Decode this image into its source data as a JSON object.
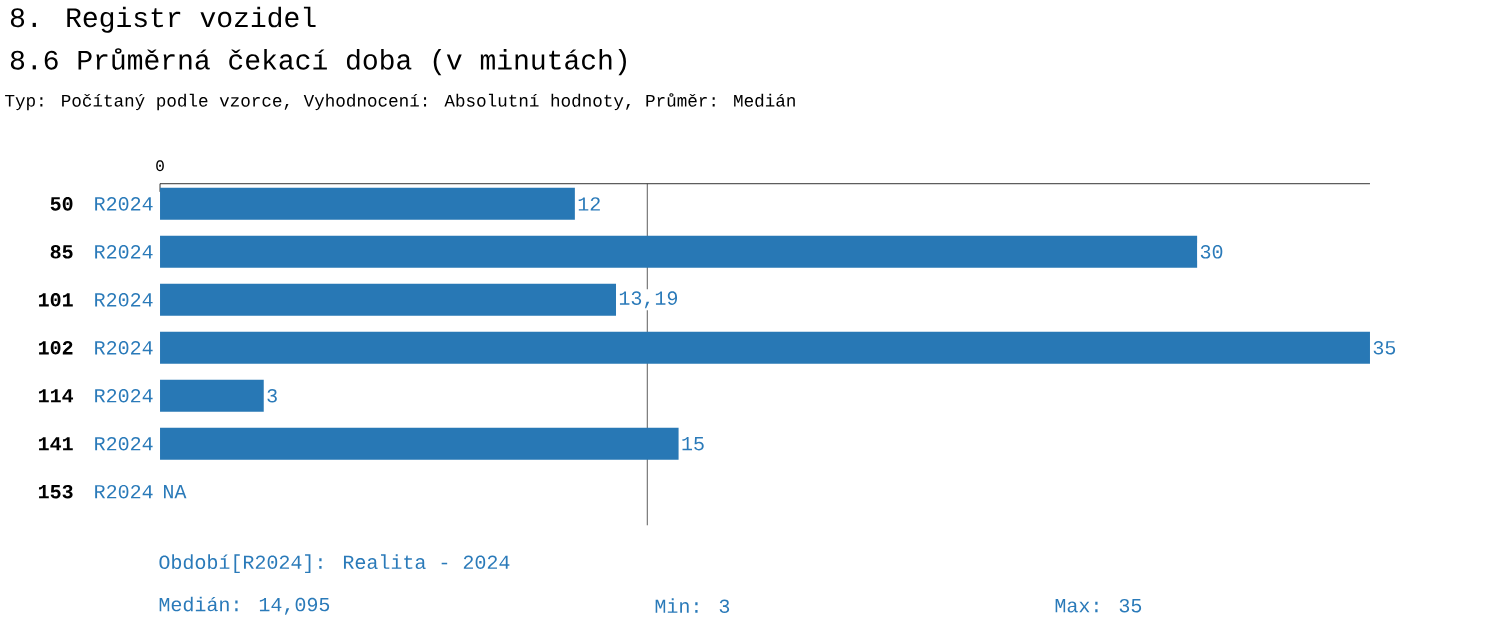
{
  "chart_data": {
    "type": "bar",
    "orientation": "horizontal",
    "title": "8. Registr vozidel",
    "subtitle": "8.6 Průměrná čekací doba (v minutách)",
    "categories": [
      "50",
      "85",
      "101",
      "102",
      "114",
      "141",
      "153"
    ],
    "series": [
      {
        "name": "R2024",
        "color": "#2878b5",
        "values": [
          12,
          30,
          13.19,
          35,
          3,
          15,
          null
        ],
        "value_labels": [
          "12",
          "30",
          "13,19",
          "35",
          "3",
          "15",
          "NA"
        ]
      }
    ],
    "ref_lines": [
      {
        "axis": "x",
        "value": 14.095,
        "color": "#333333"
      }
    ],
    "annotations": [
      "Typ: Počítaný podle vzorce, Vyhodnocení: Absolutní hodnoty, Průměr: Medián",
      "Období[R2024]: Realita - 2024",
      "Medián: 14,095",
      "Min: 3",
      "Max: 35",
      "0"
    ]
  }
}
